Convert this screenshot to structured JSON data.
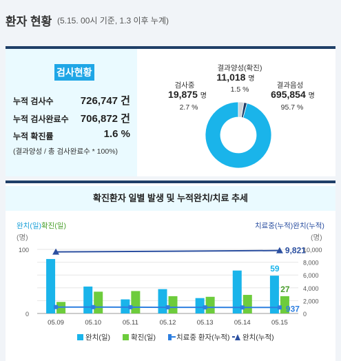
{
  "header": {
    "title": "환자 현황",
    "subtitle": "(5.15. 00시 기준, 1.3 이후 누계)"
  },
  "test_summary": {
    "badge": "검사현황",
    "rows": [
      {
        "label": "누적 검사수",
        "value": "726,747 건"
      },
      {
        "label": "누적 검사완료수",
        "value": "706,872 건"
      },
      {
        "label": "누적 확진률",
        "value": "1.6 %"
      }
    ],
    "note": "(결과양성 / 총 검사완료수 * 100%)"
  },
  "donut": {
    "segments": [
      {
        "label": "결과음성",
        "count": "695,854",
        "unit": "명",
        "percent": "95.7 %",
        "value": 95.7,
        "color": "#1ab4ea"
      },
      {
        "label": "검사중",
        "count": "19,875",
        "unit": "명",
        "percent": "2.7 %",
        "value": 2.7,
        "color": "#cfd4d9"
      },
      {
        "label": "결과양성(확진)",
        "count": "11,018",
        "unit": "명",
        "percent": "1.5 %",
        "value": 1.5,
        "color": "#1f3f68"
      }
    ]
  },
  "chart_data": {
    "type": "bar",
    "title": "확진환자 일별 발생 및 누적완치/치료 추세",
    "left_axis_label": "완치(일)확진(일)",
    "left_axis_unit": "(명)",
    "right_axis_label": "치료중(누적)완치(누적)",
    "right_axis_unit": "(명)",
    "ylim_left": [
      0,
      100
    ],
    "ylim_right": [
      0,
      10000
    ],
    "left_ticks": [
      "100",
      "0"
    ],
    "right_ticks": [
      "10,000",
      "8,000",
      "6,000",
      "4,000",
      "2,000",
      "0"
    ],
    "categories": [
      "05.09",
      "05.10",
      "05.11",
      "05.12",
      "05.13",
      "05.14",
      "05.15"
    ],
    "series": [
      {
        "name": "완치(일)",
        "type": "bar",
        "color": "#1ab4ea",
        "values": [
          85,
          42,
          22,
          38,
          24,
          67,
          59
        ]
      },
      {
        "name": "확진(일)",
        "type": "bar",
        "color": "#6dcc3c",
        "values": [
          18,
          34,
          35,
          27,
          26,
          29,
          27
        ]
      },
      {
        "name": "치료중 환자(누적)",
        "type": "line",
        "color": "#2d7fe0",
        "values": [
          1000,
          990,
          980,
          960,
          950,
          940,
          937
        ]
      },
      {
        "name": "완치(누적)",
        "type": "line",
        "color": "#2b4fa0",
        "values": [
          9610,
          9650,
          9670,
          9700,
          9720,
          9760,
          9821
        ]
      }
    ],
    "data_labels": {
      "cured_daily_last": "59",
      "confirmed_daily_last": "27",
      "treating_last": "937",
      "cured_total_last": "9,821"
    }
  }
}
